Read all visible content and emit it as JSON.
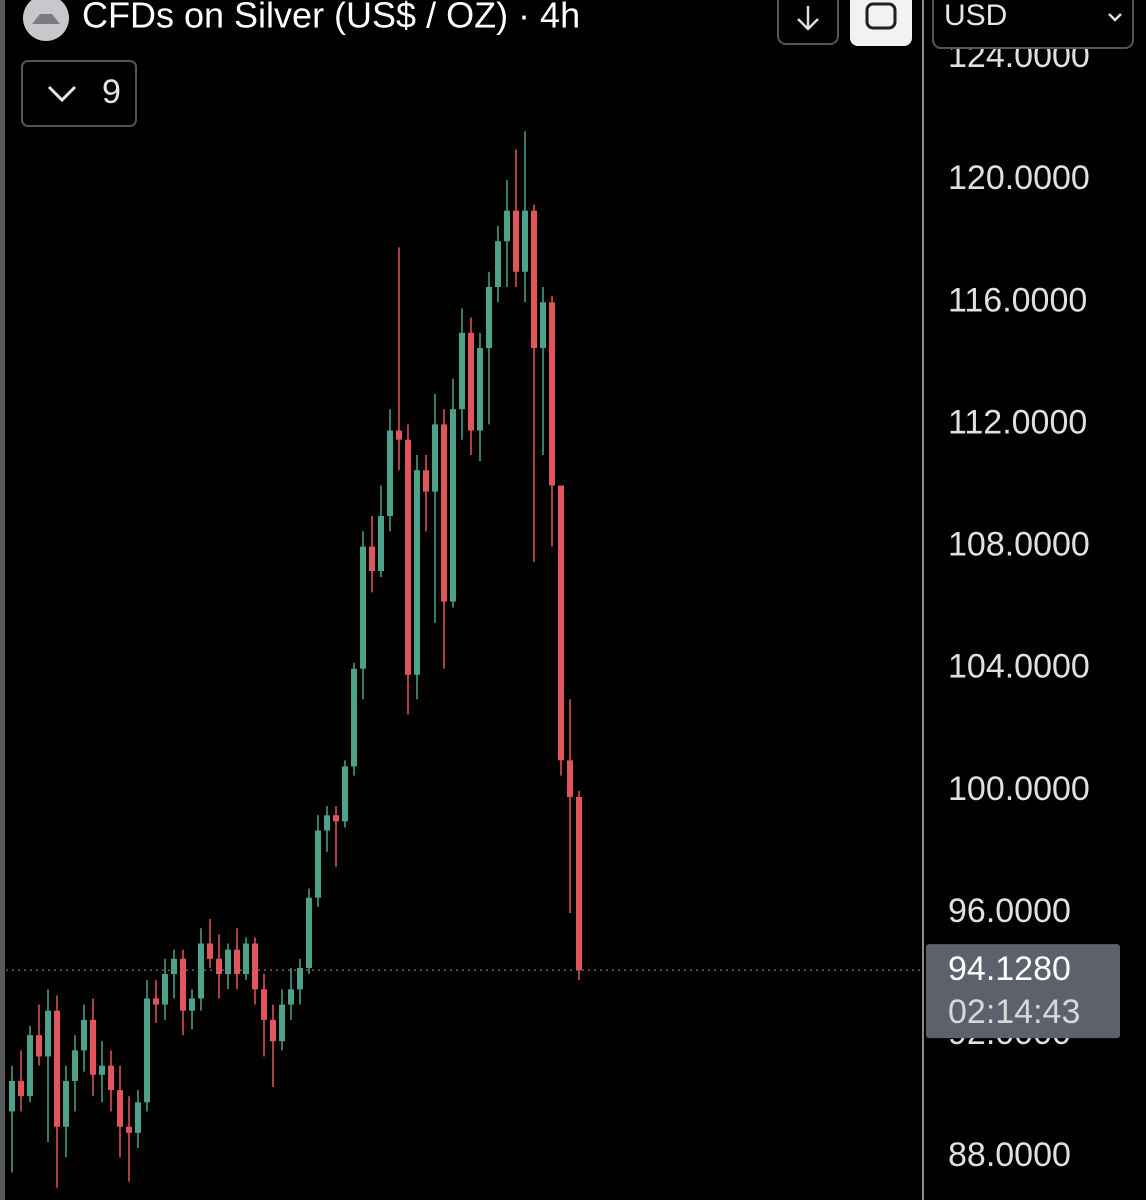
{
  "chart_data": {
    "type": "candlestick",
    "title": "CFDs on Silver (US$ / OZ) · 4h",
    "currency": "USD",
    "indicator_count": 9,
    "up_color": "#4ea28b",
    "down_color": "#e2565b",
    "ylim": [
      86.6,
      125.9
    ],
    "yticks": [
      {
        "value": 88,
        "label": "88.0000"
      },
      {
        "value": 92,
        "label": "92.0000"
      },
      {
        "value": 96,
        "label": "96.0000"
      },
      {
        "value": 100,
        "label": "100.0000"
      },
      {
        "value": 104,
        "label": "104.0000"
      },
      {
        "value": 108,
        "label": "108.0000"
      },
      {
        "value": 112,
        "label": "112.0000"
      },
      {
        "value": 116,
        "label": "116.0000"
      },
      {
        "value": 120,
        "label": "120.0000"
      },
      {
        "value": 124,
        "label": "124.0000"
      }
    ],
    "open": [
      89.5,
      90.5,
      90,
      92,
      91.3,
      92.8,
      89,
      90.5,
      91.5,
      92.5,
      90.7,
      91,
      90.2,
      89,
      88.8,
      89.8,
      93.2,
      93,
      94,
      94.5,
      92.8,
      93.2,
      95,
      94.5,
      94,
      94.8,
      94,
      95,
      93.5,
      92.5,
      91.8,
      93,
      93.5,
      94.2,
      96.5,
      98.7,
      99.2,
      99,
      100.8,
      104,
      108,
      107.2,
      109,
      111.8,
      111.5,
      103.8,
      110.5,
      109.8,
      112,
      106.2,
      112.5,
      115,
      111.8,
      114.5,
      116.5,
      118,
      119,
      117,
      119,
      114.5,
      116,
      110,
      101,
      99.8
    ],
    "high": [
      91,
      91.5,
      92.3,
      93,
      93.5,
      93.3,
      91,
      92,
      93,
      93.2,
      91.8,
      91.5,
      91,
      90,
      90.2,
      93.8,
      93.8,
      94.5,
      94.8,
      94.8,
      93.5,
      95.5,
      95.8,
      95.3,
      95,
      95.5,
      95.2,
      95.2,
      94,
      93,
      93.5,
      94.2,
      94.5,
      96.8,
      99.2,
      99.5,
      99.5,
      101,
      104.2,
      108.5,
      109,
      110,
      112.5,
      117.8,
      112,
      111,
      111,
      113,
      112.5,
      113.5,
      115.8,
      115.5,
      115,
      117,
      118.5,
      120,
      121,
      121.6,
      119.2,
      116.5,
      116.2,
      110,
      103,
      100
    ],
    "low": [
      87.5,
      89.5,
      89.8,
      91,
      88.5,
      87,
      88,
      89.5,
      90.8,
      90,
      89.8,
      89.5,
      88,
      87.2,
      88.3,
      89.5,
      92.4,
      92.5,
      93.2,
      92,
      92.2,
      92.8,
      94.2,
      93.2,
      93.5,
      93.5,
      93.8,
      93,
      91.3,
      90.3,
      91.5,
      92.5,
      93,
      94,
      96.2,
      98,
      97.5,
      98.8,
      100.5,
      103,
      106.5,
      107,
      108.5,
      110.5,
      102.5,
      103,
      108.5,
      105.5,
      104,
      106,
      111.5,
      111,
      110.8,
      112,
      116,
      116.5,
      116.5,
      116,
      107.5,
      111,
      108,
      100.5,
      96,
      93.8
    ],
    "close": [
      90.5,
      90,
      92,
      91.3,
      92.8,
      89,
      90.5,
      91.5,
      92.5,
      90.7,
      91,
      90.2,
      89,
      88.8,
      89.8,
      93.2,
      93,
      94,
      94.5,
      92.8,
      93.2,
      95,
      94.5,
      94,
      94.8,
      94,
      95,
      93.5,
      92.5,
      91.8,
      93,
      93.5,
      94.2,
      96.5,
      98.7,
      99.2,
      99,
      100.8,
      104,
      108,
      107.2,
      109,
      111.8,
      111.5,
      103.8,
      110.5,
      109.8,
      112,
      106.2,
      112.5,
      115,
      111.8,
      114.5,
      116.5,
      118,
      119,
      117,
      119,
      114.5,
      116,
      110,
      101,
      99.8,
      94.128
    ],
    "last": {
      "value": 94.128,
      "label": "94.1280",
      "countdown": "02:14:43"
    }
  }
}
